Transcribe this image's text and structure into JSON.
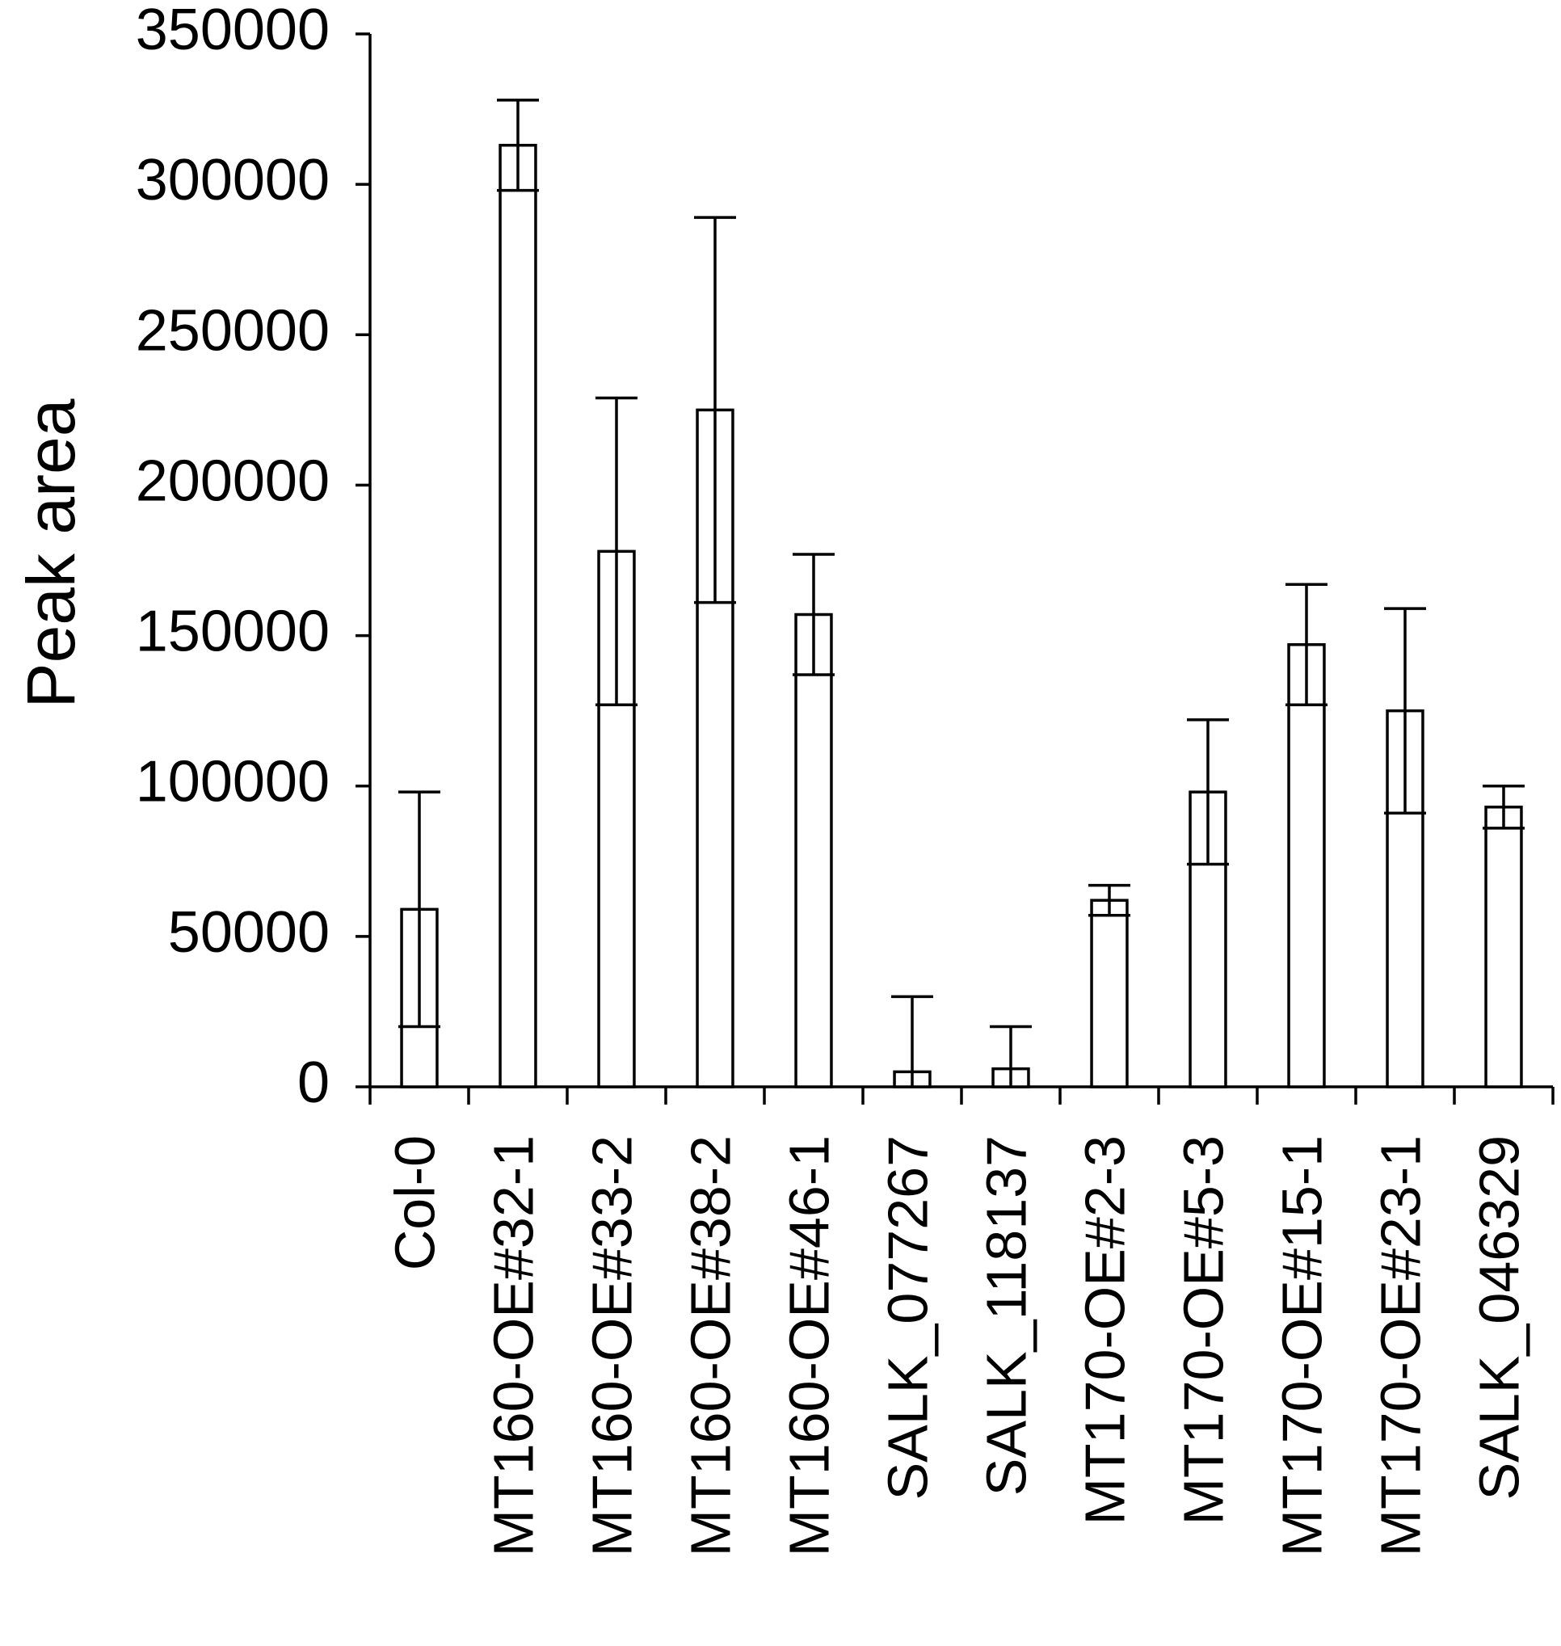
{
  "chart_data": {
    "type": "bar",
    "title": "",
    "xlabel": "",
    "ylabel": "Peak area",
    "ylim": [
      0,
      350000
    ],
    "yticks": [
      0,
      50000,
      100000,
      150000,
      200000,
      250000,
      300000,
      350000
    ],
    "ytick_labels": [
      "0",
      "50000",
      "100000",
      "150000",
      "200000",
      "250000",
      "300000",
      "350000"
    ],
    "grid": false,
    "legend": "none",
    "categories": [
      "Col-0",
      "MT160-OE#32-1",
      "MT160-OE#33-2",
      "MT160-OE#38-2",
      "MT160-OE#46-1",
      "SALK_077267",
      "SALK_118137",
      "MT170-OE#2-3",
      "MT170-OE#5-3",
      "MT170-OE#15-1",
      "MT170-OE#23-1",
      "SALK_046329"
    ],
    "values": [
      59000,
      313000,
      178000,
      225000,
      157000,
      5000,
      6000,
      62000,
      98000,
      147000,
      125000,
      93000
    ],
    "errors": [
      39000,
      15000,
      51000,
      64000,
      20000,
      25000,
      14000,
      5000,
      24000,
      20000,
      34000,
      7000
    ],
    "bar_fill": "#ffffff",
    "bar_stroke": "#000000"
  }
}
